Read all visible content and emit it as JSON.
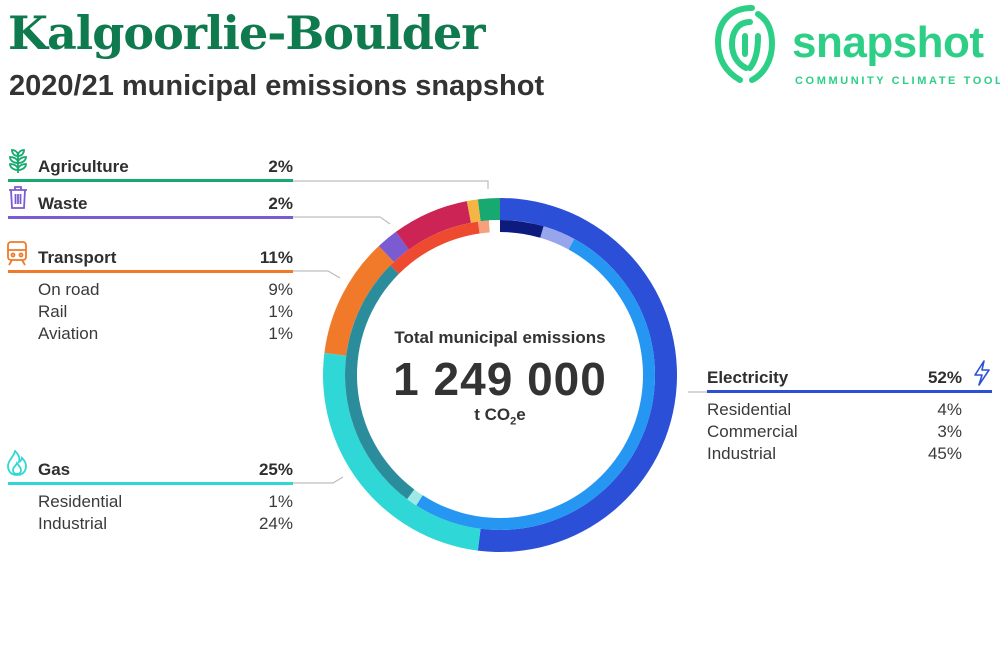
{
  "header": {
    "title": "Kalgoorlie-Boulder",
    "subtitle": "2020/21 municipal emissions snapshot"
  },
  "logo": {
    "word": "snapshot",
    "tagline": "COMMUNITY CLIMATE TOOL",
    "icon": "fingerprint-icon",
    "color": "#2ccf85"
  },
  "center": {
    "label": "Total municipal emissions",
    "value": "1 249 000",
    "unit_prefix": "t CO",
    "unit_sub": "2",
    "unit_suffix": "e"
  },
  "categories": {
    "agriculture": {
      "label": "Agriculture",
      "pct": "2%",
      "icon": "plant-icon",
      "color": "#17a970"
    },
    "waste": {
      "label": "Waste",
      "pct": "2%",
      "icon": "bin-icon",
      "color": "#7b5bd1"
    },
    "transport": {
      "label": "Transport",
      "pct": "11%",
      "icon": "train-icon",
      "color": "#f07a2a",
      "subs": [
        {
          "label": "On road",
          "pct": "9%"
        },
        {
          "label": "Rail",
          "pct": "1%"
        },
        {
          "label": "Aviation",
          "pct": "1%"
        }
      ]
    },
    "gas": {
      "label": "Gas",
      "pct": "25%",
      "icon": "flame-icon",
      "color": "#2fd8d6",
      "subs": [
        {
          "label": "Residential",
          "pct": "1%"
        },
        {
          "label": "Industrial",
          "pct": "24%"
        }
      ]
    },
    "electricity": {
      "label": "Electricity",
      "pct": "52%",
      "icon": "lightning-icon",
      "color": "#2b4fd6",
      "subs": [
        {
          "label": "Residential",
          "pct": "4%"
        },
        {
          "label": "Commercial",
          "pct": "3%"
        },
        {
          "label": "Industrial",
          "pct": "45%"
        }
      ]
    }
  },
  "chart_data": {
    "type": "pie",
    "title": "Total municipal emissions",
    "total": 1249000,
    "unit": "t CO2e",
    "outer_ring": [
      {
        "name": "Agriculture",
        "value": 2,
        "color": "#17a970"
      },
      {
        "name": "Electricity",
        "value": 52,
        "color": "#2b4fd6"
      },
      {
        "name": "Gas",
        "value": 25,
        "color": "#2fd8d6"
      },
      {
        "name": "Transport",
        "value": 11,
        "color": "#f07a2a"
      },
      {
        "name": "Waste",
        "value": 2,
        "color": "#7b5bd1"
      },
      {
        "name": "",
        "value": 7,
        "color": "#cc2454"
      },
      {
        "name": "",
        "value": 1,
        "color": "#f5b544"
      }
    ],
    "inner_ring": [
      {
        "name": "Electricity Residential",
        "value": 4,
        "color": "#0d1b7e"
      },
      {
        "name": "Electricity Commercial",
        "value": 3,
        "color": "#97a6ec"
      },
      {
        "name": "Electricity Industrial",
        "value": 45,
        "color": "#2596f2"
      },
      {
        "name": "Gas Residential",
        "value": 1,
        "color": "#9ee9e5"
      },
      {
        "name": "Gas Industrial",
        "value": 24,
        "color": "#2b8d9c"
      },
      {
        "name": "Transport On road",
        "value": 9,
        "color": "#ee4a2f"
      },
      {
        "name": "Transport Rail",
        "value": 1,
        "color": "#f6a07c"
      },
      {
        "name": "Transport Aviation",
        "value": 1,
        "color": "#ffffff"
      }
    ]
  }
}
